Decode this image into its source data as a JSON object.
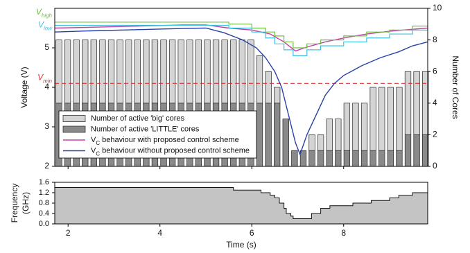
{
  "chart_data": [
    {
      "type": "combo",
      "ylabel": "Voltage (V)",
      "y2label": "Number of Cores",
      "xlim": [
        1.71,
        9.83
      ],
      "xticks": [
        2,
        4,
        6,
        8
      ],
      "ylim": [
        2,
        6
      ],
      "yticks": [
        2,
        3,
        4,
        5
      ],
      "y2lim": [
        0,
        10
      ],
      "y2ticks": [
        0,
        2,
        4,
        6,
        8,
        10
      ],
      "x": [
        1.8,
        1.99,
        2.18,
        2.37,
        2.56,
        2.75,
        2.94,
        3.13,
        3.32,
        3.51,
        3.7,
        3.89,
        4.08,
        4.27,
        4.46,
        4.65,
        4.84,
        5.03,
        5.22,
        5.41,
        5.6,
        5.79,
        5.98,
        6.17,
        6.36,
        6.55,
        6.74,
        6.93,
        7.12,
        7.31,
        7.5,
        7.69,
        7.88,
        8.07,
        8.26,
        8.45,
        8.64,
        8.83,
        9.02,
        9.21,
        9.4,
        9.59,
        9.78
      ],
      "series": [
        {
          "name": "Number of active 'big' cores",
          "type": "bar",
          "axis": "y2",
          "color": "#d4d4d4",
          "values": [
            4,
            4,
            4,
            4,
            4,
            4,
            4,
            4,
            4,
            4,
            4,
            4,
            4,
            4,
            4,
            4,
            4,
            4,
            4,
            4,
            4,
            4,
            4,
            3,
            2,
            1,
            0,
            0,
            0,
            1,
            1,
            2,
            2,
            3,
            3,
            3,
            4,
            4,
            4,
            4,
            4,
            4,
            4
          ]
        },
        {
          "name": "Number of active 'LITTLE' cores",
          "type": "bar",
          "axis": "y2",
          "color": "#8a8a8a",
          "values": [
            4,
            4,
            4,
            4,
            4,
            4,
            4,
            4,
            4,
            4,
            4,
            4,
            4,
            4,
            4,
            4,
            4,
            4,
            4,
            4,
            4,
            4,
            4,
            4,
            4,
            4,
            3,
            1,
            1,
            1,
            1,
            1,
            1,
            1,
            1,
            1,
            1,
            1,
            1,
            1,
            2,
            2,
            2
          ]
        },
        {
          "name": "VC behaviour with proposed control scheme",
          "type": "line",
          "color": "#c040a8",
          "x": [
            1.71,
            2.5,
            3.5,
            4.5,
            5.0,
            5.5,
            6.0,
            6.4,
            6.7,
            6.95,
            7.2,
            7.6,
            8.0,
            8.5,
            9.0,
            9.5,
            9.83
          ],
          "values": [
            5.5,
            5.52,
            5.55,
            5.58,
            5.58,
            5.5,
            5.45,
            5.35,
            5.15,
            4.92,
            5.02,
            5.15,
            5.25,
            5.35,
            5.42,
            5.47,
            5.5
          ]
        },
        {
          "name": "VC behaviour without proposed control scheme",
          "type": "line",
          "color": "#2840a8",
          "x": [
            1.71,
            2.5,
            3.5,
            4.5,
            5.0,
            5.4,
            5.8,
            6.1,
            6.3,
            6.5,
            6.65,
            6.8,
            6.95,
            7.05,
            7.2,
            7.4,
            7.6,
            7.8,
            8.0,
            8.4,
            8.8,
            9.2,
            9.5,
            9.83
          ],
          "values": [
            5.4,
            5.43,
            5.46,
            5.49,
            5.5,
            5.38,
            5.2,
            5.0,
            4.75,
            4.4,
            4.0,
            3.3,
            2.6,
            2.3,
            2.8,
            3.3,
            3.8,
            4.1,
            4.3,
            4.55,
            4.75,
            4.9,
            5.05,
            5.15
          ]
        },
        {
          "label": {
            "text": "V",
            "sub": "high"
          },
          "type": "step",
          "color": "#70c040",
          "x": [
            1.71,
            5.5,
            6.0,
            6.3,
            6.5,
            6.7,
            6.9,
            7.2,
            7.5,
            8.0,
            8.5,
            9.0,
            9.5
          ],
          "values": [
            5.65,
            5.6,
            5.5,
            5.4,
            5.3,
            5.15,
            5.0,
            5.1,
            5.2,
            5.3,
            5.4,
            5.45,
            5.55
          ]
        },
        {
          "label": {
            "text": "V",
            "sub": "low"
          },
          "type": "step",
          "color": "#40c0e0",
          "x": [
            1.71,
            5.5,
            6.0,
            6.3,
            6.5,
            6.7,
            6.9,
            7.2,
            7.5,
            8.0,
            8.5,
            9.0,
            9.5
          ],
          "values": [
            5.57,
            5.5,
            5.4,
            5.25,
            5.1,
            4.95,
            4.8,
            4.95,
            5.05,
            5.15,
            5.25,
            5.35,
            5.45
          ]
        }
      ],
      "hlines": [
        {
          "value": 4.1,
          "color": "#e03030",
          "label": {
            "text": "V",
            "sub": "min"
          }
        }
      ]
    },
    {
      "type": "step-area",
      "ylabel": [
        "Frequency",
        "(GHz)"
      ],
      "xlabel": "Time (s)",
      "xlim": [
        1.71,
        9.83
      ],
      "xticks": [
        2,
        4,
        6,
        8
      ],
      "ylim": [
        0,
        1.6
      ],
      "yticks": [
        {
          "value": 0,
          "label": "0.0"
        },
        0.4,
        0.8,
        1.2,
        1.6
      ],
      "color": "#c4c4c4",
      "x": [
        1.71,
        5.6,
        6.2,
        6.4,
        6.5,
        6.6,
        6.7,
        6.75,
        6.85,
        6.9,
        7.3,
        7.5,
        7.7,
        8.2,
        8.6,
        9.0,
        9.2,
        9.5
      ],
      "values": [
        1.4,
        1.3,
        1.2,
        1.1,
        1.0,
        0.8,
        0.6,
        0.4,
        0.3,
        0.2,
        0.4,
        0.6,
        0.7,
        0.8,
        0.9,
        1.0,
        1.1,
        1.2
      ]
    }
  ]
}
